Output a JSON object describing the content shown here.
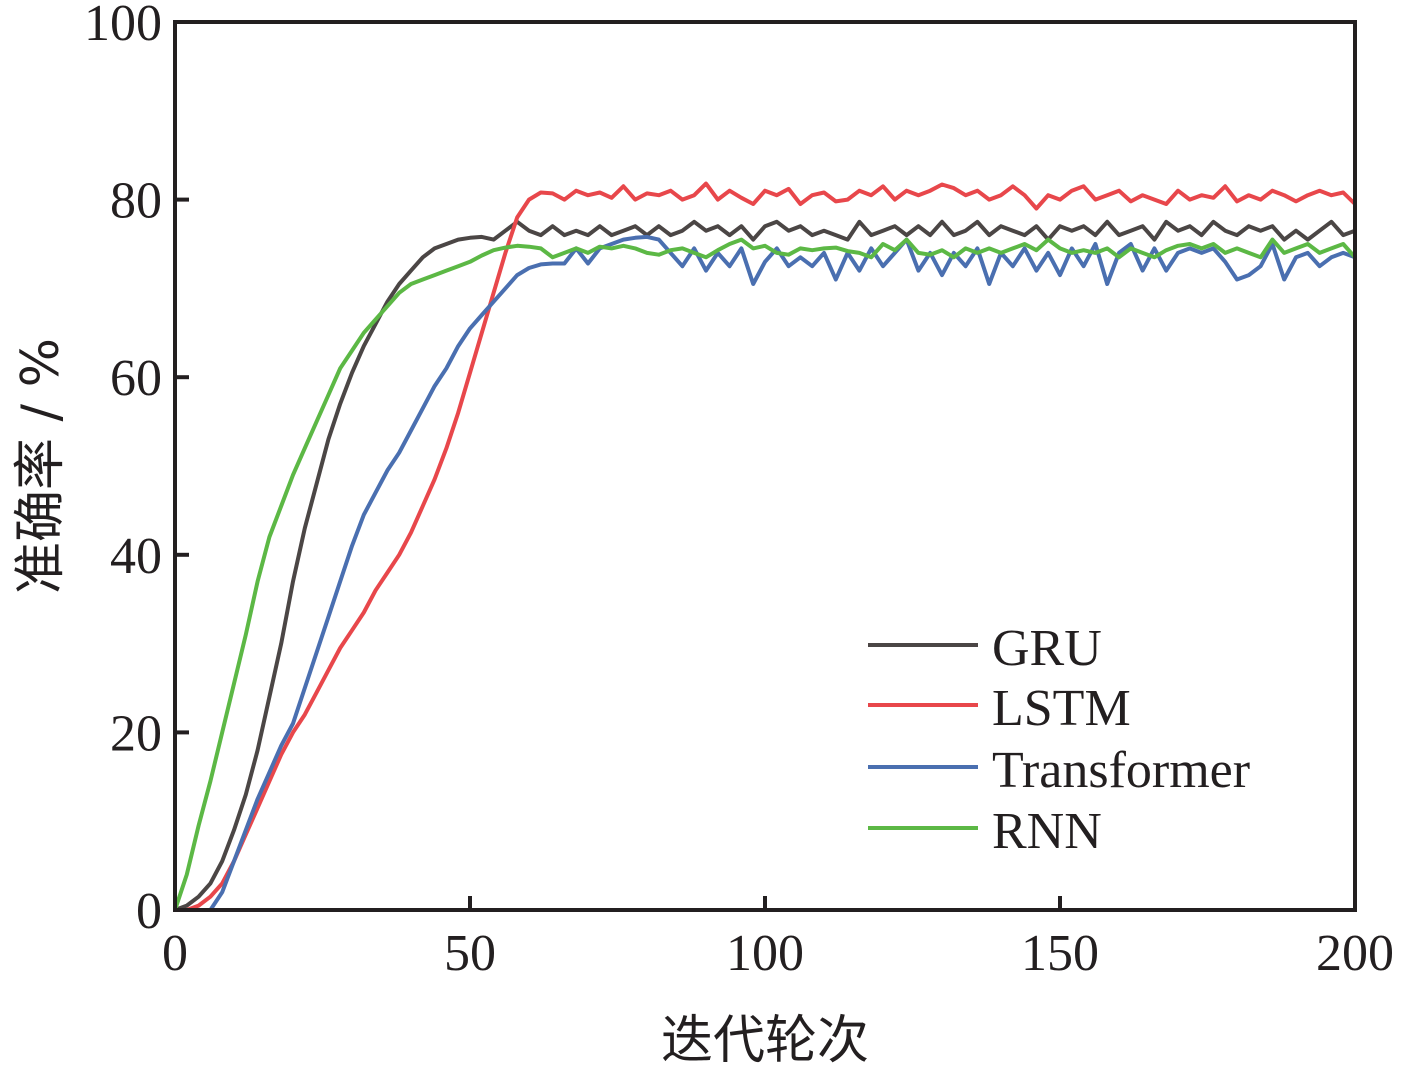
{
  "chart_data": {
    "type": "line",
    "title": "",
    "xlabel": "迭代轮次",
    "ylabel": "准确率 / %",
    "xlim": [
      0,
      200
    ],
    "ylim": [
      0,
      100
    ],
    "xticks": [
      0,
      50,
      100,
      150,
      200
    ],
    "yticks": [
      0,
      20,
      40,
      60,
      80,
      100
    ],
    "xtick_labels": [
      "0",
      "50",
      "100",
      "150",
      "200"
    ],
    "ytick_labels": [
      "0",
      "20",
      "40",
      "60",
      "80",
      "100"
    ],
    "grid": false,
    "legend_position": "lower-right",
    "x_start": 0,
    "x_step": 2,
    "series": [
      {
        "name": "GRU",
        "color": "#4b4645",
        "values": [
          0,
          0.5,
          1.5,
          3,
          5.5,
          9,
          13,
          18,
          24,
          30,
          37,
          43,
          48,
          53,
          57,
          60.5,
          63.5,
          66,
          68.5,
          70.5,
          72,
          73.5,
          74.5,
          75,
          75.5,
          75.7,
          75.8,
          75.5,
          76.5,
          77.5,
          76.5,
          76,
          77,
          76,
          76.5,
          76,
          77,
          76,
          76.5,
          77,
          76,
          77,
          76,
          76.5,
          77.5,
          76.5,
          77,
          76,
          77,
          75.5,
          77,
          77.5,
          76.5,
          77,
          76,
          76.5,
          76,
          75.5,
          77.5,
          76,
          76.5,
          77,
          76,
          77,
          76,
          77.5,
          76,
          76.5,
          77.5,
          76,
          77,
          76.5,
          76,
          77,
          75.5,
          77,
          76.5,
          77,
          76,
          77.5,
          76,
          76.5,
          77,
          75.5,
          77.5,
          76.5,
          77,
          76,
          77.5,
          76.5,
          76,
          77,
          76.5,
          77,
          75.5,
          76.5,
          75.5,
          76.5,
          77.5,
          76,
          76.5
        ]
      },
      {
        "name": "LSTM",
        "color": "#e8474b",
        "values": [
          0,
          0,
          0.5,
          1.5,
          3,
          5.5,
          8.5,
          11.5,
          14.5,
          17.5,
          20,
          22,
          24.5,
          27,
          29.5,
          31.5,
          33.5,
          36,
          38,
          40,
          42.5,
          45.5,
          48.5,
          52,
          56,
          60.5,
          65,
          69.5,
          74,
          78,
          80,
          80.8,
          80.7,
          80,
          81,
          80.5,
          80.8,
          80.2,
          81.5,
          80,
          80.7,
          80.5,
          81,
          80,
          80.5,
          81.8,
          80,
          81,
          80.2,
          79.5,
          81,
          80.5,
          81.2,
          79.5,
          80.5,
          80.8,
          79.8,
          80,
          81,
          80.5,
          81.5,
          80,
          81,
          80.5,
          81,
          81.7,
          81.3,
          80.5,
          81,
          80,
          80.5,
          81.5,
          80.5,
          79,
          80.5,
          80,
          81,
          81.5,
          80,
          80.5,
          81,
          79.8,
          80.5,
          80,
          79.5,
          81,
          80,
          80.5,
          80.2,
          81.5,
          79.8,
          80.5,
          80,
          81,
          80.5,
          79.8,
          80.5,
          81,
          80.5,
          80.8,
          79.5
        ]
      },
      {
        "name": "Transformer",
        "color": "#4a6fb0",
        "values": [
          0,
          0,
          0,
          0,
          2,
          5.5,
          9,
          12.5,
          15.5,
          18.5,
          21,
          25,
          29,
          33,
          37,
          41,
          44.5,
          47,
          49.5,
          51.5,
          54,
          56.5,
          59,
          61,
          63.5,
          65.5,
          67,
          68.5,
          70,
          71.5,
          72.3,
          72.7,
          72.8,
          72.8,
          74.5,
          72.8,
          74.5,
          75,
          75.5,
          75.7,
          75.8,
          75.5,
          74,
          72.5,
          74.5,
          72,
          74,
          72.5,
          74.5,
          70.5,
          73,
          74.5,
          72.5,
          73.5,
          72.5,
          74,
          71,
          74,
          72,
          74.5,
          72.5,
          74,
          75.5,
          72,
          74,
          71.5,
          74,
          72.5,
          74.5,
          70.5,
          74,
          72.5,
          74.5,
          72,
          74,
          71.5,
          74.5,
          72.5,
          75,
          70.5,
          74,
          75,
          72,
          74.5,
          72,
          74,
          74.5,
          74,
          74.5,
          73,
          71,
          71.5,
          72.5,
          75,
          71,
          73.5,
          74,
          72.5,
          73.5,
          74,
          73.5
        ]
      },
      {
        "name": "RNN",
        "color": "#5cb845",
        "values": [
          0,
          4,
          9.5,
          14.5,
          20,
          25.5,
          31,
          37,
          42,
          45.5,
          49,
          52,
          55,
          58,
          61,
          63,
          65,
          66.5,
          68,
          69.5,
          70.5,
          71,
          71.5,
          72,
          72.5,
          73,
          73.7,
          74.3,
          74.6,
          74.8,
          74.7,
          74.5,
          73.5,
          74,
          74.5,
          74,
          74.7,
          74.5,
          74.8,
          74.5,
          74,
          73.8,
          74.3,
          74.5,
          74,
          73.5,
          74.3,
          75,
          75.5,
          74.5,
          74.8,
          74,
          73.8,
          74.5,
          74.3,
          74.5,
          74.6,
          74.2,
          74,
          73.5,
          75,
          74.3,
          75.5,
          74,
          73.8,
          74.3,
          73.5,
          74.5,
          74,
          74.5,
          74,
          74.5,
          75,
          74.3,
          75.5,
          74.5,
          74,
          74.3,
          74,
          74.5,
          73.5,
          74.5,
          74,
          73.5,
          74.3,
          74.8,
          75,
          74.5,
          75,
          74,
          74.5,
          74,
          73.5,
          75.5,
          74,
          74.5,
          75,
          74,
          74.5,
          75,
          73.5
        ]
      }
    ]
  }
}
